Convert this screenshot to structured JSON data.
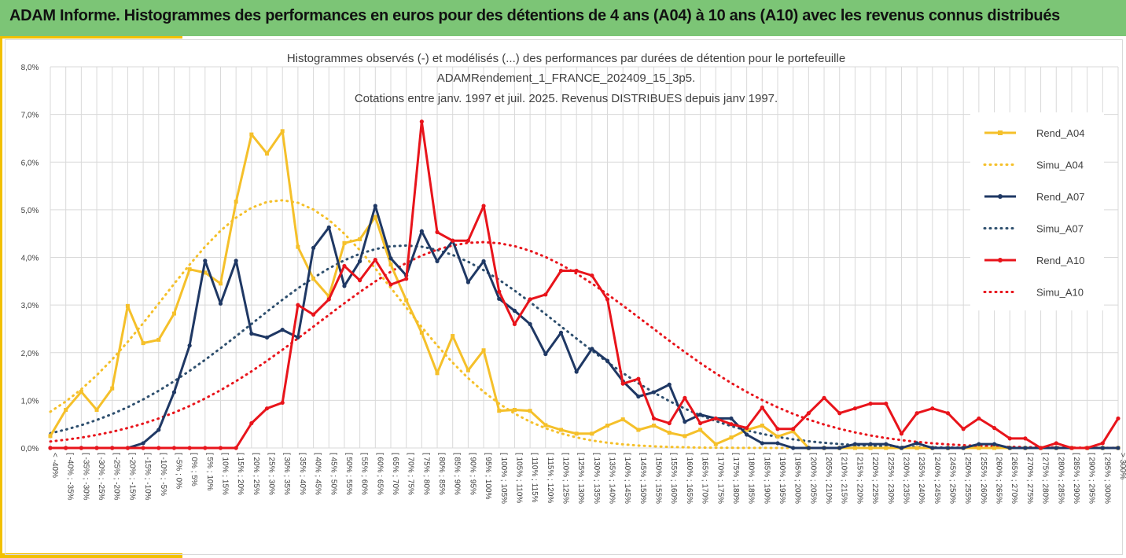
{
  "header": {
    "title": "ADAM Informe. Histogrammes des performances en euros pour des détentions de 4 ans (A04) à 10 ans (A10) avec les revenus connus distribués"
  },
  "colors": {
    "banner": "#7cc576",
    "accent": "#f2c000",
    "a04": "#f5c02a",
    "a07": "#1f3864",
    "a07_simu": "#2e4f6e",
    "a10": "#e8141b"
  },
  "chart_data": {
    "type": "line",
    "title": [
      "Histogrammes observés (-) et modélisés (...) des performances par durées de détention pour le portefeuille",
      "ADAMRendement_1_FRANCE_202409_15_3p5.",
      "Cotations entre janv. 1997 et juil. 2025. Revenus DISTRIBUES depuis janv 1997."
    ],
    "ylim": [
      0,
      8
    ],
    "y_ticks": [
      "0,0%",
      "1,0%",
      "2,0%",
      "3,0%",
      "4,0%",
      "5,0%",
      "6,0%",
      "7,0%",
      "8,0%"
    ],
    "grid": true,
    "legend_position": "right",
    "categories": [
      "< -40%",
      "[ -40% ; -35%",
      "[ -35% ; -30%",
      "[ -30% ; -25%",
      "[ -25% ; -20%",
      "[ -20% ; -15%",
      "[ -15% ; -10%",
      "[ -10% ; -5%",
      "[ -5% ; 0%",
      "[ 0% ; 5%",
      "[ 5% ; 10%",
      "[ 10% ; 15%",
      "[ 15% ; 20%",
      "[ 20% ; 25%",
      "[ 25% ; 30%",
      "[ 30% ; 35%",
      "[ 35% ; 40%",
      "[ 40% ; 45%",
      "[ 45% ; 50%",
      "[ 50% ; 55%",
      "[ 55% ; 60%",
      "[ 60% ; 65%",
      "[ 65% ; 70%",
      "[ 70% ; 75%",
      "[ 75% ; 80%",
      "[ 80% ; 85%",
      "[ 85% ; 90%",
      "[ 90% ; 95%",
      "[ 95% ; 100%",
      "[ 100% ; 105%",
      "[ 105% ; 110%",
      "[ 110% ; 115%",
      "[ 115% ; 120%",
      "[ 120% ; 125%",
      "[ 125% ; 130%",
      "[ 130% ; 135%",
      "[ 135% ; 140%",
      "[ 140% ; 145%",
      "[ 145% ; 150%",
      "[ 150% ; 155%",
      "[ 155% ; 160%",
      "[ 160% ; 165%",
      "[ 165% ; 170%",
      "[ 170% ; 175%",
      "[ 175% ; 180%",
      "[ 180% ; 185%",
      "[ 185% ; 190%",
      "[ 190% ; 195%",
      "[ 195% ; 200%",
      "[ 200% ; 205%",
      "[ 205% ; 210%",
      "[ 210% ; 215%",
      "[ 215% ; 220%",
      "[ 220% ; 225%",
      "[ 225% ; 230%",
      "[ 230% ; 235%",
      "[ 235% ; 240%",
      "[ 240% ; 245%",
      "[ 245% ; 250%",
      "[ 250% ; 255%",
      "[ 255% ; 260%",
      "[ 260% ; 265%",
      "[ 265% ; 270%",
      "[ 270% ; 275%",
      "[ 275% ; 280%",
      "[ 280% ; 285%",
      "[ 285% ; 290%",
      "[ 290% ; 295%",
      "[ 295% ; 300%",
      "> 300%"
    ],
    "series": [
      {
        "name": "Rend_A04",
        "style": "solid",
        "color": "#f5c02a",
        "values": [
          0.25,
          0.8,
          1.18,
          0.8,
          1.25,
          2.98,
          2.2,
          2.27,
          2.82,
          3.75,
          3.68,
          3.45,
          5.17,
          6.58,
          6.18,
          6.65,
          4.22,
          3.55,
          3.18,
          4.3,
          4.38,
          4.85,
          3.85,
          3.1,
          2.42,
          1.57,
          2.35,
          1.63,
          2.05,
          0.78,
          0.8,
          0.78,
          0.48,
          0.38,
          0.3,
          0.3,
          0.47,
          0.6,
          0.38,
          0.47,
          0.32,
          0.25,
          0.38,
          0.08,
          0.22,
          0.38,
          0.47,
          0.24,
          0.35,
          0.0,
          0.0,
          0.0,
          0.0,
          0.0,
          0.0,
          0.0,
          0.0,
          0.0,
          0.0,
          0.0,
          0.0,
          0.0,
          0.0,
          0.0,
          0.0,
          0.0,
          0.0,
          0.0,
          0.0,
          0.0
        ]
      },
      {
        "name": "Simu_A04",
        "style": "dotted",
        "color": "#f5c02a",
        "mean_pct": 32.0,
        "sd_pct": 38.0,
        "peak": 5.2
      },
      {
        "name": "Rend_A07",
        "style": "solid",
        "color": "#1f3864",
        "values": [
          0.0,
          0.0,
          0.0,
          0.0,
          0.0,
          0.0,
          0.1,
          0.38,
          1.17,
          2.15,
          3.93,
          3.03,
          3.93,
          2.4,
          2.32,
          2.48,
          2.32,
          4.2,
          4.63,
          3.4,
          3.92,
          5.08,
          3.98,
          3.62,
          4.55,
          3.92,
          4.35,
          3.48,
          3.92,
          3.13,
          2.88,
          2.6,
          1.97,
          2.42,
          1.6,
          2.08,
          1.83,
          1.4,
          1.08,
          1.17,
          1.33,
          0.55,
          0.7,
          0.62,
          0.62,
          0.28,
          0.1,
          0.1,
          0.0,
          0.0,
          0.0,
          0.0,
          0.08,
          0.08,
          0.08,
          0.0,
          0.1,
          0.0,
          0.0,
          0.0,
          0.08,
          0.08,
          0.0,
          0.0,
          0.0,
          0.0,
          0.0,
          0.0,
          0.0,
          0.0
        ]
      },
      {
        "name": "Simu_A07",
        "style": "dotted",
        "color": "#2e4f6e",
        "mean_pct": 72.0,
        "sd_pct": 50.0,
        "peak": 4.25
      },
      {
        "name": "Rend_A10",
        "style": "solid",
        "color": "#e8141b",
        "values": [
          0.0,
          0.0,
          0.0,
          0.0,
          0.0,
          0.0,
          0.0,
          0.0,
          0.0,
          0.0,
          0.0,
          0.0,
          0.0,
          0.52,
          0.83,
          0.95,
          3.0,
          2.8,
          3.12,
          3.82,
          3.52,
          3.95,
          3.43,
          3.55,
          6.85,
          4.53,
          4.35,
          4.35,
          5.08,
          3.28,
          2.6,
          3.12,
          3.22,
          3.72,
          3.72,
          3.62,
          3.12,
          1.35,
          1.45,
          0.62,
          0.52,
          1.05,
          0.52,
          0.62,
          0.5,
          0.42,
          0.85,
          0.4,
          0.4,
          0.73,
          1.05,
          0.73,
          0.83,
          0.93,
          0.93,
          0.3,
          0.73,
          0.83,
          0.73,
          0.4,
          0.62,
          0.42,
          0.2,
          0.2,
          0.0,
          0.1,
          0.0,
          0.0,
          0.1,
          0.62
        ]
      },
      {
        "name": "Simu_A10",
        "style": "dotted",
        "color": "#e8141b",
        "mean_pct": 97.0,
        "sd_pct": 53.0,
        "peak": 4.32
      }
    ]
  }
}
